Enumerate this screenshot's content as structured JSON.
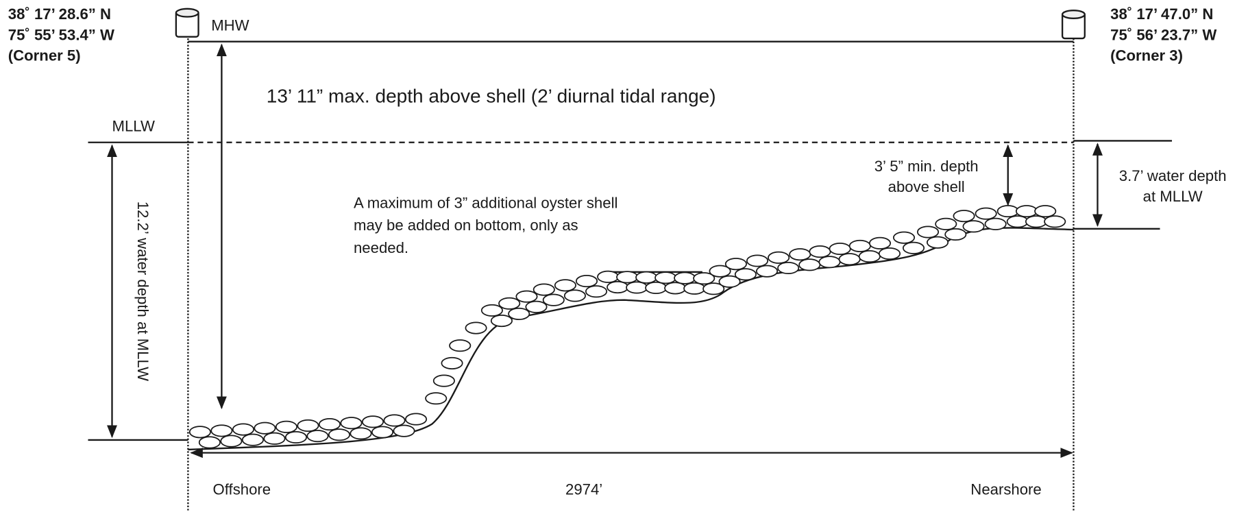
{
  "corner_left": {
    "lines": [
      "38˚ 17’ 28.6” N",
      "75˚ 55’ 53.4” W",
      "(Corner 5)"
    ]
  },
  "corner_right": {
    "lines": [
      "38˚ 17’ 47.0” N",
      "75˚ 56’ 23.7” W",
      "(Corner 3)"
    ]
  },
  "levels": {
    "mhw": "MHW",
    "mllw": "MLLW"
  },
  "max_depth": "13’ 11” max. depth above shell (2’ diurnal tidal range)",
  "left_depth": "12.2’ water depth at MLLW",
  "min_depth": {
    "lines": [
      "3’ 5” min. depth",
      "above shell"
    ]
  },
  "right_depth": {
    "lines": [
      "3.7’ water depth",
      "at MLLW"
    ]
  },
  "note": {
    "lines": [
      "A maximum of 3” additional oyster shell",
      "may be added on bottom, only as",
      "needed."
    ]
  },
  "bottom": {
    "left": "Offshore",
    "distance": "2974’",
    "right": "Nearshore"
  }
}
